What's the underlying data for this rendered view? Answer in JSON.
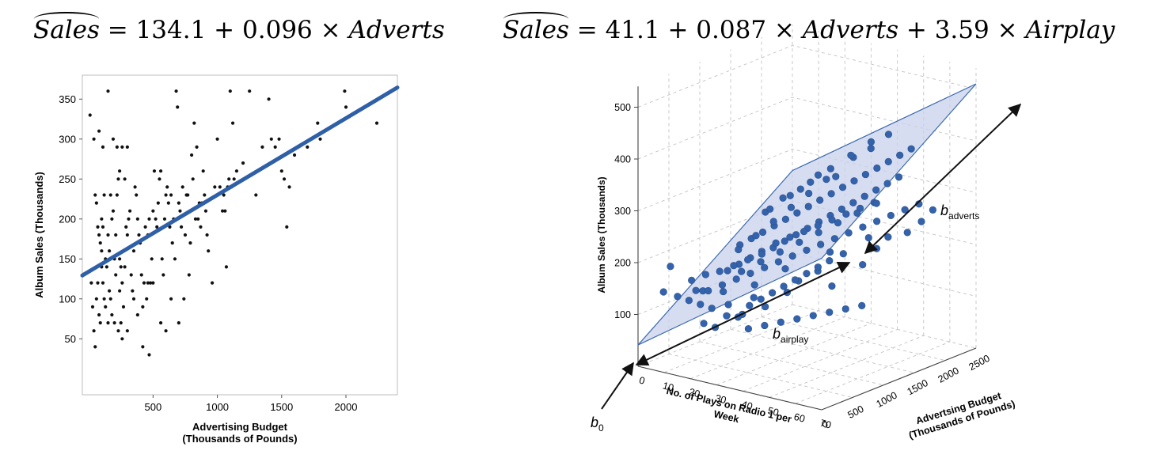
{
  "equations": {
    "left": {
      "lhs": "Sales",
      "eq": " = ",
      "intercept": "134.1",
      "plus1": " + ",
      "coef1": "0.096",
      "times1": " × ",
      "var1": "Adverts"
    },
    "right": {
      "lhs": "Sales",
      "eq": " = ",
      "intercept": "41.1",
      "plus1": " + ",
      "coef1": "0.087",
      "times1": " × ",
      "var1": "Adverts",
      "plus2": " + ",
      "coef2": "3.59",
      "times2": " × ",
      "var2": "Airplay"
    }
  },
  "chart_data": [
    {
      "type": "scatter",
      "xlabel": "Advertising Budget\n(Thousands of Pounds)",
      "ylabel": "Album Sales (Thousands)",
      "xlim": [
        -50,
        2400
      ],
      "ylim": [
        -20,
        380
      ],
      "x_ticks": [
        500,
        1000,
        1500,
        2000
      ],
      "y_ticks": [
        50,
        100,
        150,
        200,
        250,
        300,
        350
      ],
      "grid": false,
      "regression_line": {
        "intercept": 134.1,
        "slope": 0.096,
        "color": "#2f5fa7"
      },
      "point_color": "#111111",
      "points": [
        [
          10,
          330
        ],
        [
          40,
          300
        ],
        [
          80,
          310
        ],
        [
          110,
          290
        ],
        [
          150,
          360
        ],
        [
          190,
          300
        ],
        [
          220,
          290
        ],
        [
          240,
          260
        ],
        [
          260,
          290
        ],
        [
          300,
          290
        ],
        [
          50,
          230
        ],
        [
          60,
          220
        ],
        [
          70,
          190
        ],
        [
          80,
          180
        ],
        [
          90,
          170
        ],
        [
          100,
          160
        ],
        [
          100,
          200
        ],
        [
          110,
          190
        ],
        [
          120,
          230
        ],
        [
          130,
          150
        ],
        [
          140,
          140
        ],
        [
          150,
          180
        ],
        [
          160,
          160
        ],
        [
          170,
          230
        ],
        [
          180,
          200
        ],
        [
          190,
          210
        ],
        [
          200,
          150
        ],
        [
          210,
          180
        ],
        [
          220,
          230
        ],
        [
          230,
          250
        ],
        [
          240,
          150
        ],
        [
          250,
          140
        ],
        [
          260,
          120
        ],
        [
          270,
          160
        ],
        [
          280,
          250
        ],
        [
          290,
          190
        ],
        [
          300,
          180
        ],
        [
          310,
          200
        ],
        [
          320,
          210
        ],
        [
          330,
          130
        ],
        [
          340,
          110
        ],
        [
          350,
          160
        ],
        [
          360,
          240
        ],
        [
          370,
          230
        ],
        [
          380,
          200
        ],
        [
          390,
          180
        ],
        [
          400,
          170
        ],
        [
          410,
          130
        ],
        [
          420,
          90
        ],
        [
          430,
          120
        ],
        [
          440,
          190
        ],
        [
          450,
          100
        ],
        [
          460,
          180
        ],
        [
          470,
          200
        ],
        [
          480,
          120
        ],
        [
          490,
          150
        ],
        [
          500,
          210
        ],
        [
          510,
          260
        ],
        [
          520,
          200
        ],
        [
          530,
          190
        ],
        [
          540,
          220
        ],
        [
          550,
          250
        ],
        [
          560,
          260
        ],
        [
          570,
          150
        ],
        [
          580,
          130
        ],
        [
          590,
          200
        ],
        [
          600,
          230
        ],
        [
          610,
          240
        ],
        [
          620,
          220
        ],
        [
          630,
          190
        ],
        [
          640,
          230
        ],
        [
          650,
          170
        ],
        [
          660,
          200
        ],
        [
          670,
          150
        ],
        [
          680,
          360
        ],
        [
          690,
          340
        ],
        [
          700,
          220
        ],
        [
          710,
          210
        ],
        [
          720,
          190
        ],
        [
          730,
          240
        ],
        [
          740,
          100
        ],
        [
          750,
          180
        ],
        [
          760,
          230
        ],
        [
          770,
          230
        ],
        [
          780,
          130
        ],
        [
          790,
          170
        ],
        [
          800,
          280
        ],
        [
          810,
          250
        ],
        [
          820,
          320
        ],
        [
          830,
          200
        ],
        [
          840,
          290
        ],
        [
          850,
          200
        ],
        [
          860,
          220
        ],
        [
          870,
          190
        ],
        [
          880,
          220
        ],
        [
          890,
          260
        ],
        [
          900,
          230
        ],
        [
          910,
          210
        ],
        [
          920,
          180
        ],
        [
          930,
          160
        ],
        [
          960,
          120
        ],
        [
          980,
          240
        ],
        [
          1000,
          300
        ],
        [
          1020,
          240
        ],
        [
          1040,
          210
        ],
        [
          1050,
          230
        ],
        [
          1060,
          210
        ],
        [
          1070,
          140
        ],
        [
          1080,
          240
        ],
        [
          1090,
          250
        ],
        [
          1100,
          360
        ],
        [
          1110,
          240
        ],
        [
          1120,
          320
        ],
        [
          1130,
          250
        ],
        [
          1150,
          260
        ],
        [
          1200,
          270
        ],
        [
          1250,
          360
        ],
        [
          1300,
          230
        ],
        [
          1350,
          290
        ],
        [
          1400,
          350
        ],
        [
          1420,
          300
        ],
        [
          1450,
          290
        ],
        [
          1480,
          300
        ],
        [
          1500,
          260
        ],
        [
          1520,
          250
        ],
        [
          1540,
          190
        ],
        [
          1560,
          240
        ],
        [
          1600,
          280
        ],
        [
          1700,
          290
        ],
        [
          1780,
          320
        ],
        [
          1800,
          300
        ],
        [
          1990,
          360
        ],
        [
          2000,
          340
        ],
        [
          2240,
          320
        ],
        [
          20,
          120
        ],
        [
          30,
          90
        ],
        [
          40,
          60
        ],
        [
          50,
          40
        ],
        [
          60,
          100
        ],
        [
          70,
          120
        ],
        [
          80,
          80
        ],
        [
          90,
          70
        ],
        [
          100,
          140
        ],
        [
          110,
          120
        ],
        [
          120,
          100
        ],
        [
          130,
          90
        ],
        [
          150,
          70
        ],
        [
          160,
          110
        ],
        [
          170,
          100
        ],
        [
          180,
          80
        ],
        [
          200,
          70
        ],
        [
          210,
          130
        ],
        [
          230,
          60
        ],
        [
          250,
          70
        ],
        [
          260,
          50
        ],
        [
          280,
          140
        ],
        [
          300,
          60
        ],
        [
          350,
          100
        ],
        [
          380,
          80
        ],
        [
          420,
          40
        ],
        [
          460,
          120
        ],
        [
          470,
          30
        ],
        [
          500,
          120
        ],
        [
          560,
          70
        ],
        [
          600,
          60
        ],
        [
          640,
          100
        ],
        [
          700,
          70
        ],
        [
          240,
          110
        ],
        [
          270,
          90
        ]
      ]
    },
    {
      "type": "scatter",
      "projection": "3d",
      "zlabel": "Album Sales (Thousands)",
      "xlabel": "No. of Plays on Radio 1 per\nWeek",
      "ylabel": "Advertsing Budget\n(Thousands of Pounds)",
      "x_ticks": [
        0,
        10,
        20,
        30,
        40,
        50,
        60,
        70
      ],
      "y_ticks": [
        0,
        500,
        1000,
        1500,
        2000,
        2500
      ],
      "z_ticks": [
        100,
        200,
        300,
        400,
        500
      ],
      "regression_plane": {
        "intercept": 41.1,
        "coef_adverts": 0.087,
        "coef_airplay": 3.59,
        "color": "#c9d2ec"
      },
      "point_color": "#3563ab",
      "annotations": {
        "b0": "b",
        "b0_sub": "0",
        "b_adverts": "b",
        "b_adverts_sub": "adverts",
        "b_airplay": "b",
        "b_airplay_sub": "airplay"
      },
      "points": [
        [
          10,
          100,
          200
        ],
        [
          15,
          300,
          150
        ],
        [
          20,
          200,
          160
        ],
        [
          25,
          400,
          130
        ],
        [
          28,
          500,
          110
        ],
        [
          30,
          600,
          140
        ],
        [
          32,
          700,
          120
        ],
        [
          35,
          400,
          180
        ],
        [
          38,
          800,
          150
        ],
        [
          40,
          900,
          170
        ],
        [
          42,
          600,
          210
        ],
        [
          45,
          1000,
          190
        ],
        [
          48,
          1100,
          160
        ],
        [
          50,
          1200,
          220
        ],
        [
          52,
          900,
          240
        ],
        [
          55,
          1300,
          200
        ],
        [
          58,
          1400,
          230
        ],
        [
          60,
          1500,
          250
        ],
        [
          62,
          1100,
          270
        ],
        [
          65,
          1600,
          260
        ],
        [
          68,
          1700,
          280
        ],
        [
          70,
          1800,
          300
        ],
        [
          20,
          800,
          220
        ],
        [
          22,
          900,
          230
        ],
        [
          24,
          1000,
          240
        ],
        [
          26,
          1100,
          250
        ],
        [
          28,
          1200,
          260
        ],
        [
          30,
          1300,
          270
        ],
        [
          32,
          1400,
          280
        ],
        [
          34,
          1500,
          290
        ],
        [
          36,
          1600,
          300
        ],
        [
          38,
          1700,
          310
        ],
        [
          40,
          1800,
          320
        ],
        [
          42,
          1900,
          330
        ],
        [
          44,
          2000,
          340
        ],
        [
          46,
          2100,
          350
        ],
        [
          48,
          2200,
          360
        ],
        [
          50,
          2300,
          370
        ],
        [
          15,
          500,
          140
        ],
        [
          18,
          600,
          150
        ],
        [
          21,
          700,
          160
        ],
        [
          24,
          800,
          170
        ],
        [
          27,
          900,
          180
        ],
        [
          30,
          1000,
          190
        ],
        [
          33,
          1100,
          200
        ],
        [
          36,
          1200,
          210
        ],
        [
          39,
          1300,
          220
        ],
        [
          42,
          1400,
          230
        ],
        [
          45,
          1500,
          240
        ],
        [
          48,
          1600,
          250
        ],
        [
          51,
          1700,
          260
        ],
        [
          54,
          1800,
          270
        ],
        [
          57,
          1900,
          280
        ],
        [
          60,
          2000,
          290
        ],
        [
          10,
          400,
          120
        ],
        [
          12,
          500,
          110
        ],
        [
          14,
          600,
          100
        ],
        [
          16,
          700,
          130
        ],
        [
          18,
          300,
          90
        ],
        [
          20,
          400,
          80
        ],
        [
          22,
          500,
          100
        ],
        [
          24,
          600,
          95
        ],
        [
          26,
          700,
          115
        ],
        [
          28,
          800,
          125
        ],
        [
          30,
          900,
          135
        ],
        [
          32,
          1000,
          145
        ],
        [
          34,
          1100,
          155
        ],
        [
          36,
          1200,
          165
        ],
        [
          38,
          1300,
          175
        ],
        [
          40,
          1400,
          185
        ],
        [
          25,
          1000,
          280
        ],
        [
          27,
          1200,
          300
        ],
        [
          29,
          1400,
          310
        ],
        [
          31,
          1600,
          330
        ],
        [
          33,
          1800,
          320
        ],
        [
          35,
          2000,
          350
        ],
        [
          37,
          2200,
          360
        ],
        [
          39,
          2400,
          380
        ],
        [
          20,
          600,
          180
        ],
        [
          22,
          700,
          190
        ],
        [
          24,
          800,
          200
        ],
        [
          26,
          900,
          210
        ],
        [
          28,
          1000,
          215
        ],
        [
          30,
          1100,
          225
        ],
        [
          32,
          1200,
          235
        ],
        [
          34,
          1300,
          245
        ],
        [
          36,
          1400,
          255
        ],
        [
          38,
          1500,
          265
        ],
        [
          40,
          1600,
          275
        ],
        [
          42,
          1700,
          285
        ],
        [
          44,
          1800,
          295
        ],
        [
          46,
          1900,
          305
        ],
        [
          48,
          2000,
          315
        ],
        [
          50,
          2100,
          325
        ],
        [
          5,
          200,
          140
        ],
        [
          8,
          300,
          130
        ],
        [
          11,
          400,
          160
        ],
        [
          14,
          500,
          170
        ],
        [
          17,
          600,
          175
        ],
        [
          20,
          700,
          185
        ],
        [
          23,
          800,
          195
        ],
        [
          26,
          900,
          205
        ],
        [
          29,
          1000,
          225
        ],
        [
          32,
          1100,
          235
        ],
        [
          35,
          1200,
          245
        ],
        [
          38,
          1300,
          255
        ],
        [
          41,
          1400,
          265
        ],
        [
          44,
          1500,
          275
        ],
        [
          47,
          1600,
          285
        ],
        [
          50,
          1700,
          295
        ],
        [
          30,
          400,
          200
        ],
        [
          35,
          500,
          220
        ],
        [
          40,
          600,
          240
        ],
        [
          45,
          700,
          260
        ],
        [
          50,
          800,
          280
        ],
        [
          55,
          900,
          300
        ],
        [
          60,
          1000,
          320
        ],
        [
          65,
          1100,
          340
        ],
        [
          15,
          1500,
          250
        ],
        [
          18,
          1700,
          270
        ],
        [
          21,
          1900,
          290
        ],
        [
          24,
          2100,
          310
        ],
        [
          27,
          2300,
          330
        ],
        [
          30,
          2500,
          350
        ],
        [
          35,
          300,
          100
        ],
        [
          40,
          350,
          110
        ],
        [
          45,
          400,
          120
        ],
        [
          50,
          450,
          130
        ],
        [
          55,
          500,
          140
        ],
        [
          60,
          550,
          150
        ],
        [
          65,
          600,
          160
        ],
        [
          70,
          650,
          170
        ],
        [
          10,
          1200,
          180
        ],
        [
          12,
          1400,
          200
        ],
        [
          14,
          1600,
          220
        ],
        [
          16,
          1800,
          240
        ],
        [
          18,
          2000,
          260
        ],
        [
          20,
          2200,
          280
        ]
      ]
    }
  ]
}
